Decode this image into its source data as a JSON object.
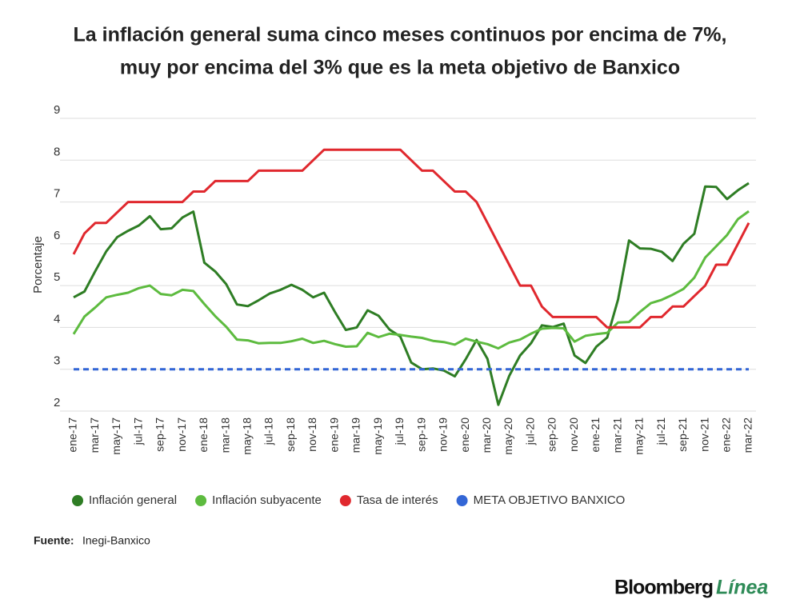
{
  "chart_data": {
    "type": "line",
    "title": [
      "La inflación general suma cinco meses continuos por encima de 7%,",
      "muy por encima del 3% que es la meta objetivo de Banxico"
    ],
    "y_label": "Porcentaje",
    "categories": [
      "ene-17",
      null,
      "mar-17",
      null,
      "may-17",
      null,
      "jul-17",
      null,
      "sep-17",
      null,
      "nov-17",
      null,
      "ene-18",
      null,
      "mar-18",
      null,
      "may-18",
      null,
      "jul-18",
      null,
      "sep-18",
      null,
      "nov-18",
      null,
      "ene-19",
      null,
      "mar-19",
      null,
      "may-19",
      null,
      "jul-19",
      null,
      "sep-19",
      null,
      "nov-19",
      null,
      "ene-20",
      null,
      "mar-20",
      null,
      "may-20",
      null,
      "jul-20",
      null,
      "sep-20",
      null,
      "nov-20",
      null,
      "ene-21",
      null,
      "mar-21",
      null,
      "may-21",
      null,
      "jul-21",
      null,
      "sep-21",
      null,
      "nov-21",
      null,
      "ene-22",
      null,
      "mar-22"
    ],
    "series": [
      {
        "name": "Inflación general",
        "color": "#2e7d24",
        "values": [
          4.72,
          4.86,
          5.35,
          5.82,
          6.16,
          6.31,
          6.44,
          6.66,
          6.35,
          6.37,
          6.63,
          6.77,
          5.55,
          5.34,
          5.04,
          4.55,
          4.51,
          4.65,
          4.81,
          4.9,
          5.02,
          4.9,
          4.72,
          4.83,
          4.37,
          3.94,
          4.0,
          4.41,
          4.28,
          3.95,
          3.78,
          3.16,
          3.0,
          3.02,
          2.97,
          2.83,
          3.24,
          3.7,
          3.25,
          2.15,
          2.84,
          3.33,
          3.62,
          4.05,
          4.01,
          4.09,
          3.33,
          3.15,
          3.54,
          3.76,
          4.67,
          6.08,
          5.89,
          5.88,
          5.81,
          5.59,
          6.0,
          6.24,
          7.37,
          7.36,
          7.07,
          7.28,
          7.45
        ]
      },
      {
        "name": "Inflación subyacente",
        "color": "#5dbb3f",
        "values": [
          3.84,
          4.26,
          4.48,
          4.72,
          4.78,
          4.83,
          4.94,
          5.0,
          4.8,
          4.77,
          4.9,
          4.87,
          4.56,
          4.27,
          4.02,
          3.71,
          3.69,
          3.62,
          3.63,
          3.63,
          3.67,
          3.73,
          3.63,
          3.68,
          3.6,
          3.54,
          3.55,
          3.87,
          3.77,
          3.85,
          3.82,
          3.78,
          3.75,
          3.68,
          3.65,
          3.59,
          3.73,
          3.66,
          3.6,
          3.5,
          3.64,
          3.71,
          3.85,
          3.97,
          3.99,
          3.98,
          3.66,
          3.8,
          3.84,
          3.87,
          4.12,
          4.13,
          4.37,
          4.58,
          4.66,
          4.78,
          4.92,
          5.19,
          5.67,
          5.94,
          6.21,
          6.59,
          6.78
        ]
      },
      {
        "name": "Tasa de interés",
        "color": "#e0282e",
        "values": [
          5.75,
          6.25,
          6.5,
          6.5,
          6.75,
          7,
          7,
          7,
          7,
          7,
          7,
          7.25,
          7.25,
          7.5,
          7.5,
          7.5,
          7.5,
          7.75,
          7.75,
          7.75,
          7.75,
          7.75,
          8,
          8.25,
          8.25,
          8.25,
          8.25,
          8.25,
          8.25,
          8.25,
          8.25,
          8,
          7.75,
          7.75,
          7.5,
          7.25,
          7.25,
          7,
          6.5,
          6,
          5.5,
          5,
          5,
          4.5,
          4.25,
          4.25,
          4.25,
          4.25,
          4.25,
          4,
          4,
          4,
          4,
          4.25,
          4.25,
          4.5,
          4.5,
          4.75,
          5,
          5.5,
          5.5,
          6,
          6.5
        ]
      },
      {
        "name": "META OBJETIVO BANXICO",
        "color": "#3366d6",
        "dashed": true,
        "values": [
          3,
          3,
          3,
          3,
          3,
          3,
          3,
          3,
          3,
          3,
          3,
          3,
          3,
          3,
          3,
          3,
          3,
          3,
          3,
          3,
          3,
          3,
          3,
          3,
          3,
          3,
          3,
          3,
          3,
          3,
          3,
          3,
          3,
          3,
          3,
          3,
          3,
          3,
          3,
          3,
          3,
          3,
          3,
          3,
          3,
          3,
          3,
          3,
          3,
          3,
          3,
          3,
          3,
          3,
          3,
          3,
          3,
          3,
          3,
          3,
          3,
          3,
          3
        ]
      }
    ],
    "ylim": [
      2,
      9
    ],
    "yticks": [
      2,
      3,
      4,
      5,
      6,
      7,
      8,
      9
    ],
    "grid": true,
    "legend": "bottom"
  },
  "footer": {
    "source_label": "Fuente:",
    "source": "Inegi-Banxico",
    "brand_name": "Bloomberg",
    "brand_suffix": "Línea"
  }
}
